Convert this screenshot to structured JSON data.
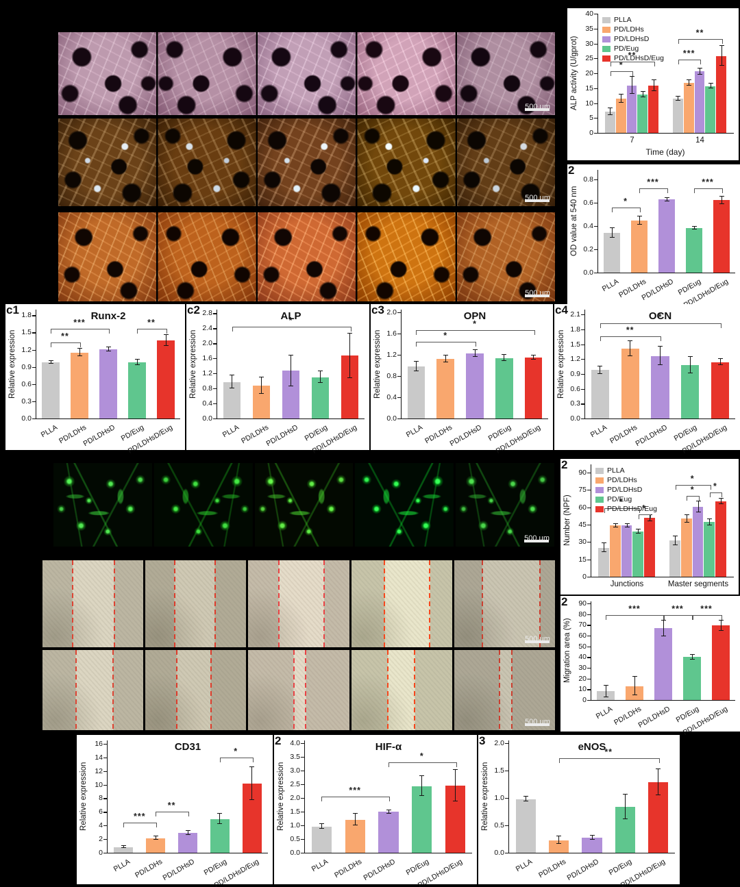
{
  "colors": {
    "gray": "#c9c9c9",
    "orange": "#f9a76e",
    "purple": "#b190d9",
    "green": "#5fc68e",
    "red": "#e7342b"
  },
  "group_labels": [
    "PLLA",
    "PD/LDHs",
    "PD/LDHsD",
    "PD/Eug",
    "PD/LDHsD/Eug"
  ],
  "image_rows": [
    {
      "id": "a1",
      "kind": "scaffold-pink",
      "scalebar": "500 μm"
    },
    {
      "id": "a2",
      "kind": "scaffold-brown",
      "scalebar": "500 μm"
    },
    {
      "id": "a3",
      "kind": "scaffold-orange",
      "scalebar": "500 μm"
    },
    {
      "id": "d1",
      "kind": "fluorescence",
      "scalebar": "500 μm"
    },
    {
      "id": "e1a",
      "kind": "scratch",
      "scalebar": "500 μm",
      "lines": [
        [
          30,
          71
        ],
        [
          29,
          69
        ],
        [
          30,
          75
        ],
        [
          33,
          78
        ],
        [
          28,
          85
        ]
      ]
    },
    {
      "id": "e1b",
      "kind": "scratch",
      "scalebar": "500 μm",
      "lines": [
        [
          33,
          70
        ],
        [
          31,
          65
        ],
        [
          45,
          57
        ],
        [
          36,
          63
        ],
        [
          45,
          57
        ]
      ]
    }
  ],
  "chart_data": [
    {
      "id": "b1",
      "panel_label": "",
      "type": "bar",
      "title": "",
      "ylabel": "ALP activity (U/gprot)",
      "xlabel": "Time (day)",
      "ylim": [
        0,
        40
      ],
      "ytick_step": 5,
      "decimals": 0,
      "grouped": true,
      "legend": true,
      "categories": [
        "7",
        "14"
      ],
      "series": [
        {
          "name": "PLLA",
          "color": "gray",
          "values": [
            7.5,
            11.8
          ],
          "errors": [
            1.0,
            0.5
          ]
        },
        {
          "name": "PD/LDHs",
          "color": "orange",
          "values": [
            11.9,
            17.2
          ],
          "errors": [
            1.3,
            0.8
          ]
        },
        {
          "name": "PD/LDHsD",
          "color": "purple",
          "values": [
            16.3,
            21.0
          ],
          "errors": [
            2.8,
            0.9
          ]
        },
        {
          "name": "PD/Eug",
          "color": "green",
          "values": [
            13.2,
            16.0
          ],
          "errors": [
            0.9,
            0.7
          ]
        },
        {
          "name": "PD/LDHsD/Eug",
          "color": "red",
          "values": [
            16.2,
            26.2
          ],
          "errors": [
            1.8,
            3.3
          ]
        }
      ],
      "brackets": [
        {
          "from": [
            0,
            0
          ],
          "to": [
            0,
            2
          ],
          "y": 20.8,
          "label": "*"
        },
        {
          "from": [
            0,
            0
          ],
          "to": [
            0,
            4
          ],
          "y": 23.8,
          "label": "**"
        },
        {
          "from": [
            1,
            0
          ],
          "to": [
            1,
            2
          ],
          "y": 24.6,
          "label": "***"
        },
        {
          "from": [
            1,
            0
          ],
          "to": [
            1,
            4
          ],
          "y": 31.5,
          "label": "**"
        }
      ]
    },
    {
      "id": "b2",
      "panel_label": "2",
      "type": "bar",
      "title": "",
      "ylabel": "OD value at 540 nm",
      "xlabel": "",
      "ylim": [
        0,
        0.88
      ],
      "ytick_step": 0.2,
      "decimals": 1,
      "grouped": false,
      "rotate": true,
      "labels": [
        "PLLA",
        "PD/LDHs",
        "PD/LDHsD",
        "PD/Eug",
        "PD/LDHsD/Eug"
      ],
      "bar_colors": [
        "gray",
        "orange",
        "purple",
        "green",
        "red"
      ],
      "values": [
        0.35,
        0.455,
        0.635,
        0.39,
        0.63
      ],
      "errors": [
        0.04,
        0.03,
        0.012,
        0.008,
        0.03
      ],
      "brackets": [
        {
          "from": 0,
          "to": 1,
          "y": 0.555,
          "label": "*"
        },
        {
          "from": 1,
          "to": 2,
          "y": 0.72,
          "label": "***"
        },
        {
          "from": 3,
          "to": 4,
          "y": 0.72,
          "label": "***"
        }
      ]
    },
    {
      "id": "c1",
      "panel_label": "c1",
      "type": "bar",
      "title": "Runx-2",
      "ylabel": "Relative expression",
      "xlabel": "",
      "ylim": [
        0,
        1.9
      ],
      "ytick_step": 0.3,
      "decimals": 1,
      "grouped": false,
      "rotate": true,
      "labels": [
        "PLLA",
        "PD/LDHs",
        "PD/LDHsD",
        "PD/Eug",
        "PD/LDHsD/Eug"
      ],
      "bar_colors": [
        "gray",
        "orange",
        "purple",
        "green",
        "red"
      ],
      "values": [
        1.0,
        1.17,
        1.22,
        1.0,
        1.38
      ],
      "errors": [
        0.02,
        0.06,
        0.03,
        0.04,
        0.09
      ],
      "brackets": [
        {
          "from": 0,
          "to": 1,
          "y": 1.33,
          "label": "**"
        },
        {
          "from": 0,
          "to": 2,
          "y": 1.56,
          "label": "***"
        },
        {
          "from": 3,
          "to": 4,
          "y": 1.56,
          "label": "**"
        }
      ]
    },
    {
      "id": "c2",
      "panel_label": "c2",
      "type": "bar",
      "title": "ALP",
      "ylabel": "Relative expression",
      "xlabel": "",
      "ylim": [
        0,
        2.9
      ],
      "ytick_step": 0.4,
      "decimals": 1,
      "grouped": false,
      "rotate": true,
      "labels": [
        "PLLA",
        "PD/LDHs",
        "PD/LDHsD",
        "PD/Eug",
        "PD/LDHsD/Eug"
      ],
      "bar_colors": [
        "gray",
        "orange",
        "purple",
        "green",
        "red"
      ],
      "values": [
        1.0,
        0.91,
        1.3,
        1.13,
        1.7
      ],
      "errors": [
        0.16,
        0.21,
        0.4,
        0.15,
        0.58
      ],
      "brackets": [
        {
          "from": 0,
          "to": 4,
          "y": 2.45,
          "label": "*"
        }
      ]
    },
    {
      "id": "c3",
      "panel_label": "c3",
      "type": "bar",
      "title": "OPN",
      "ylabel": "Relative expression",
      "xlabel": "",
      "ylim": [
        0,
        2.05
      ],
      "ytick_step": 0.4,
      "decimals": 1,
      "grouped": false,
      "rotate": true,
      "labels": [
        "PLLA",
        "PD/LDHs",
        "PD/LDHsD",
        "PD/Eug",
        "PD/LDHsD/Eug"
      ],
      "bar_colors": [
        "gray",
        "orange",
        "purple",
        "green",
        "red"
      ],
      "values": [
        1.0,
        1.14,
        1.24,
        1.16,
        1.17
      ],
      "errors": [
        0.08,
        0.06,
        0.06,
        0.05,
        0.03
      ],
      "brackets": [
        {
          "from": 0,
          "to": 2,
          "y": 1.45,
          "label": "*"
        },
        {
          "from": 0,
          "to": 4,
          "y": 1.66,
          "label": "*"
        }
      ]
    },
    {
      "id": "c4",
      "panel_label": "c4",
      "type": "bar",
      "title": "OCN",
      "ylabel": "Relative expression",
      "xlabel": "",
      "ylim": [
        0,
        2.2
      ],
      "ytick_step": 0.3,
      "decimals": 1,
      "grouped": false,
      "rotate": true,
      "labels": [
        "PLLA",
        "PD/LDHs",
        "PD/LDHsD",
        "PD/Eug",
        "PD/LDHsD/Eug"
      ],
      "bar_colors": [
        "gray",
        "orange",
        "purple",
        "green",
        "red"
      ],
      "values": [
        1.0,
        1.43,
        1.28,
        1.1,
        1.16
      ],
      "errors": [
        0.07,
        0.15,
        0.18,
        0.16,
        0.06
      ],
      "brackets": [
        {
          "from": 0,
          "to": 2,
          "y": 1.66,
          "label": "**"
        },
        {
          "from": 0,
          "to": 4,
          "y": 1.92,
          "label": "*"
        }
      ]
    },
    {
      "id": "d2",
      "panel_label": "2",
      "type": "bar",
      "title": "",
      "ylabel": "Number (NPF)",
      "xlabel": "",
      "ylim": [
        0,
        97
      ],
      "ytick_step": 15,
      "decimals": 0,
      "grouped": true,
      "legend": true,
      "categories": [
        "Junctions",
        "Master segments"
      ],
      "series": [
        {
          "name": "PLLA",
          "color": "gray",
          "values": [
            26,
            32
          ],
          "errors": [
            3.5,
            3.5
          ]
        },
        {
          "name": "PD/LDHs",
          "color": "orange",
          "values": [
            45,
            51
          ],
          "errors": [
            1,
            3
          ]
        },
        {
          "name": "PD/LDHsD",
          "color": "purple",
          "values": [
            45,
            61
          ],
          "errors": [
            1,
            4.5
          ]
        },
        {
          "name": "PD/Eug",
          "color": "green",
          "values": [
            40,
            48
          ],
          "errors": [
            1.5,
            2.5
          ]
        },
        {
          "name": "PD/LDHsD/Eug",
          "color": "red",
          "values": [
            51.5,
            66
          ],
          "errors": [
            2.5,
            2
          ]
        }
      ],
      "brackets": [
        {
          "from": [
            0,
            0
          ],
          "to": [
            0,
            3
          ],
          "y": 59,
          "label": "*"
        },
        {
          "from": [
            0,
            3
          ],
          "to": [
            0,
            4
          ],
          "y": 54,
          "label": "*"
        },
        {
          "from": [
            1,
            0
          ],
          "to": [
            1,
            3
          ],
          "y": 79,
          "label": "*"
        },
        {
          "from": [
            1,
            1
          ],
          "to": [
            1,
            2
          ],
          "y": 70,
          "label": "*"
        },
        {
          "from": [
            1,
            3
          ],
          "to": [
            1,
            4
          ],
          "y": 73,
          "label": "*"
        }
      ]
    },
    {
      "id": "e2",
      "panel_label": "2",
      "type": "bar",
      "title": "",
      "ylabel": "Migration area (%)",
      "xlabel": "",
      "ylim": [
        0,
        92
      ],
      "ytick_step": 10,
      "decimals": 0,
      "grouped": false,
      "rotate": true,
      "labels": [
        "PLLA",
        "PD/LDHs",
        "PD/LDHsD",
        "PD/Eug",
        "PD/LDHsD/Eug"
      ],
      "bar_colors": [
        "gray",
        "orange",
        "purple",
        "green",
        "red"
      ],
      "values": [
        9,
        14,
        68,
        41,
        70.5
      ],
      "errors": [
        5,
        8.5,
        7,
        2,
        4.5
      ],
      "brackets": [
        {
          "from": 0,
          "to": 2,
          "y": 79,
          "label": "***"
        },
        {
          "from": 2,
          "to": 3,
          "y": 79,
          "label": "***"
        },
        {
          "from": 3,
          "to": 4,
          "y": 79,
          "label": "***"
        }
      ]
    },
    {
      "id": "f1",
      "panel_label": "",
      "type": "bar",
      "title": "CD31",
      "ylabel": "Relative expression",
      "xlabel": "",
      "ylim": [
        0,
        16.5
      ],
      "ytick_step": 2,
      "decimals": 0,
      "grouped": false,
      "rotate": true,
      "labels": [
        "PLLA",
        "PD/LDHs",
        "PD/LDHsD",
        "PD/Eug",
        "PD/LDHsD/Eug"
      ],
      "bar_colors": [
        "gray",
        "orange",
        "purple",
        "green",
        "red"
      ],
      "values": [
        1.0,
        2.3,
        3.1,
        5.1,
        10.3
      ],
      "errors": [
        0.1,
        0.2,
        0.25,
        0.7,
        2.4
      ],
      "brackets": [
        {
          "from": 0,
          "to": 1,
          "y": 4.4,
          "label": "***"
        },
        {
          "from": 1,
          "to": 2,
          "y": 6.0,
          "label": "**"
        },
        {
          "from": 3,
          "to": 4,
          "y": 14.0,
          "label": "*"
        }
      ]
    },
    {
      "id": "f2",
      "panel_label": "2",
      "type": "bar",
      "title": "HIF-α",
      "ylabel": "Relative expression",
      "xlabel": "",
      "ylim": [
        0,
        4.1
      ],
      "ytick_step": 0.5,
      "decimals": 1,
      "grouped": false,
      "rotate": true,
      "labels": [
        "PLLA",
        "PD/LDHs",
        "PD/LDHsD",
        "PD/Eug",
        "PD/LDHsD/Eug"
      ],
      "bar_colors": [
        "gray",
        "orange",
        "purple",
        "green",
        "red"
      ],
      "values": [
        1.0,
        1.25,
        1.53,
        2.47,
        2.49
      ],
      "errors": [
        0.08,
        0.21,
        0.05,
        0.35,
        0.56
      ],
      "brackets": [
        {
          "from": 0,
          "to": 2,
          "y": 2.05,
          "label": "***"
        },
        {
          "from": 2,
          "to": 4,
          "y": 3.3,
          "label": "*"
        }
      ]
    },
    {
      "id": "f3",
      "panel_label": "3",
      "type": "bar",
      "title": "eNOS",
      "ylabel": "Relative expression",
      "xlabel": "",
      "ylim": [
        0,
        2.05
      ],
      "ytick_step": 0.5,
      "decimals": 1,
      "grouped": false,
      "rotate": true,
      "labels": [
        "PLLA",
        "PD/LDHs",
        "PD/LDHsD",
        "PD/Eug",
        "PD/LDHsD/Eug"
      ],
      "bar_colors": [
        "gray",
        "orange",
        "purple",
        "green",
        "red"
      ],
      "values": [
        1.0,
        0.25,
        0.29,
        0.86,
        1.31
      ],
      "errors": [
        0.04,
        0.06,
        0.03,
        0.22,
        0.23
      ],
      "brackets": [
        {
          "from": 1,
          "to": 4,
          "y": 1.73,
          "label": "**"
        }
      ]
    }
  ]
}
